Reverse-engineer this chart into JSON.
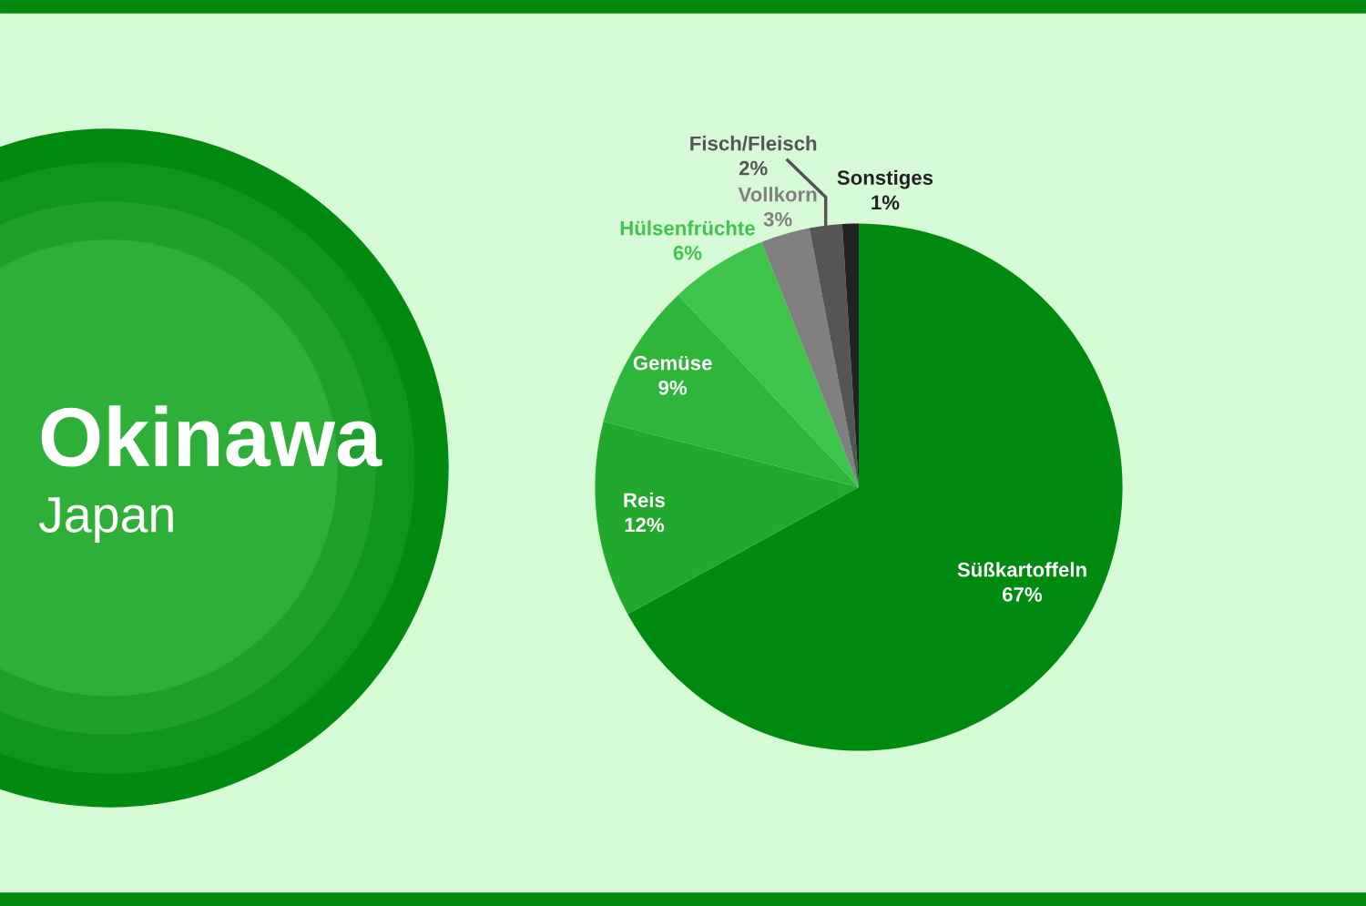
{
  "chart_data": {
    "type": "pie",
    "title": "Okinawa",
    "subtitle": "Japan",
    "categories": [
      "Süßkartoffeln",
      "Reis",
      "Gemüse",
      "Hülsenfrüchte",
      "Vollkorn",
      "Fisch/Fleisch",
      "Sonstiges"
    ],
    "values": [
      67,
      12,
      9,
      6,
      3,
      2,
      1
    ],
    "colors": [
      "#008a10",
      "#22a82c",
      "#2db63a",
      "#3ec44a",
      "#808080",
      "#555555",
      "#222222"
    ],
    "value_labels": [
      "67%",
      "12%",
      "9%",
      "6%",
      "3%",
      "2%",
      "1%"
    ]
  }
}
